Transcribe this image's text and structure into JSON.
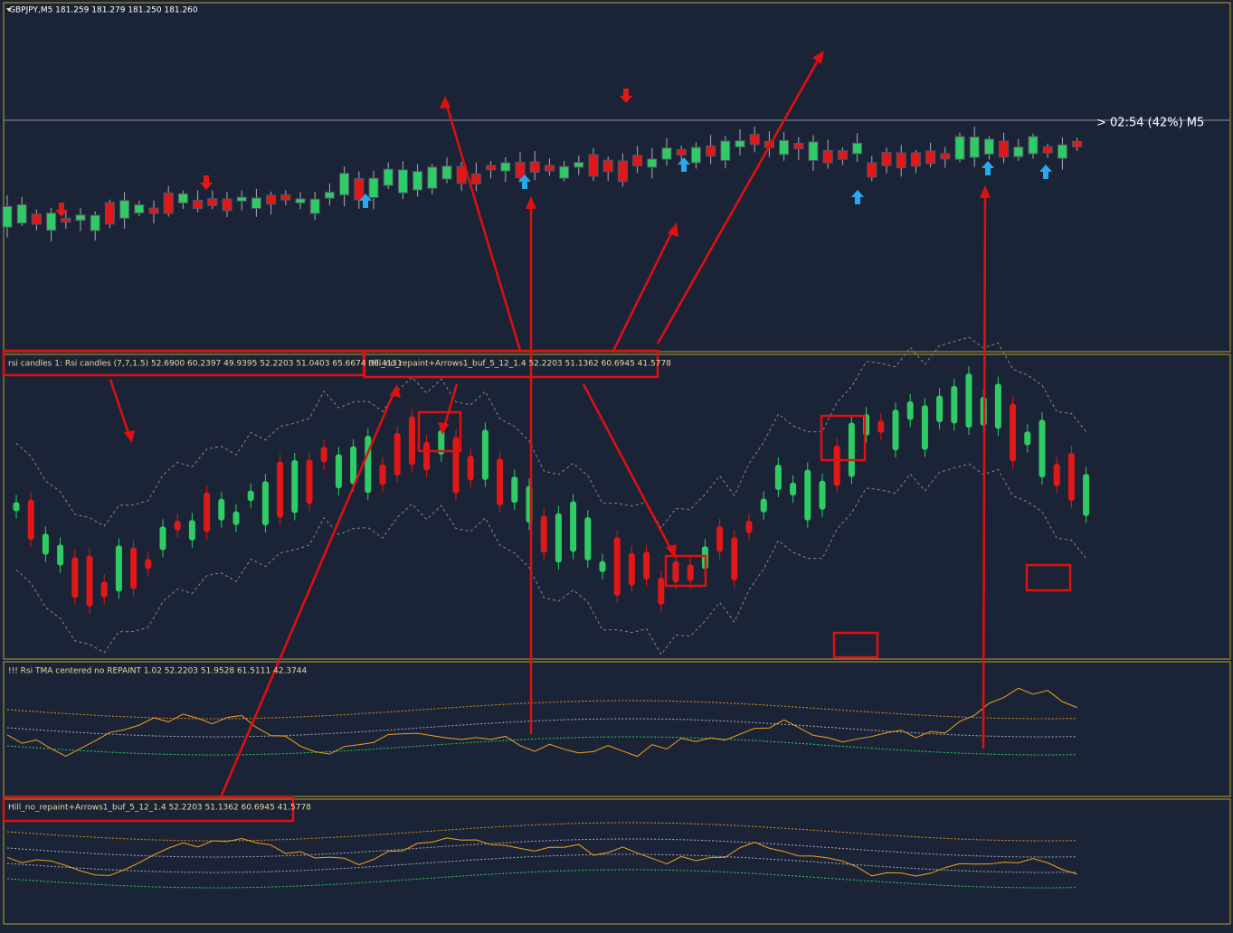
{
  "header": {
    "symbol_line": "GBPJPY,M5  181.259 181.279 181.250 181.260",
    "timer": "> 02:54 (42%) M5"
  },
  "panels": [
    {
      "label": "rsi candles 1: Rsi candles (7,7,1.5) 52.6900 60.2397 49.9395 52.2203 51.0403 65.6674 36.4131"
    },
    {
      "label": "Hill_no_repaint+Arrows1_buf_5_12_1.4 52.2203 51.1362 60.6945 41.5778"
    },
    {
      "label": "!!! Rsi TMA centered no REPAINT 1.02 52.2203 51.9528 61.5111 42.3744"
    },
    {
      "label": "Hill_no_repaint+Arrows1_buf_5_12_1.4 52.2203 51.1362 60.6945 41.5778"
    }
  ]
}
